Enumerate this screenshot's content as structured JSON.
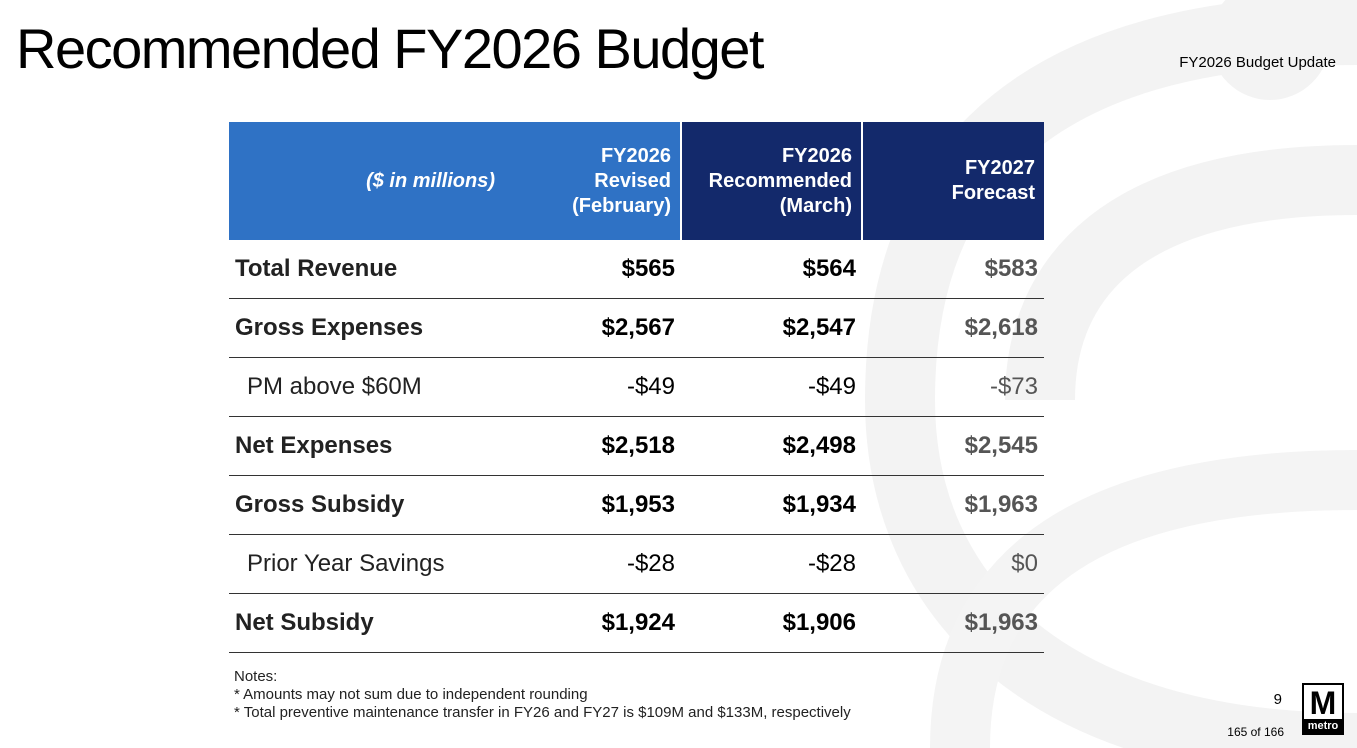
{
  "header": {
    "title": "Recommended FY2026 Budget",
    "subtitle": "FY2026 Budget Update"
  },
  "table": {
    "units_label": "($ in millions)",
    "columns": [
      {
        "lines": [
          "FY2026",
          "Revised",
          "(February)"
        ]
      },
      {
        "lines": [
          "FY2026",
          "Recommended",
          "(March)"
        ]
      },
      {
        "lines": [
          "FY2027",
          "Forecast"
        ]
      }
    ],
    "rows": [
      {
        "label": "Total Revenue",
        "revised": "$565",
        "recommended": "$564",
        "forecast": "$583"
      },
      {
        "label": "Gross Expenses",
        "revised": "$2,567",
        "recommended": "$2,547",
        "forecast": "$2,618"
      },
      {
        "label": "PM above $60M",
        "revised": "-$49",
        "recommended": "-$49",
        "forecast": "-$73"
      },
      {
        "label": "Net Expenses",
        "revised": "$2,518",
        "recommended": "$2,498",
        "forecast": "$2,545"
      },
      {
        "label": "Gross Subsidy",
        "revised": "$1,953",
        "recommended": "$1,934",
        "forecast": "$1,963"
      },
      {
        "label": "Prior Year Savings",
        "revised": "-$28",
        "recommended": "-$28",
        "forecast": "$0"
      },
      {
        "label": "Net Subsidy",
        "revised": "$1,924",
        "recommended": "$1,906",
        "forecast": "$1,963"
      }
    ]
  },
  "notes": {
    "heading": "Notes:",
    "items": [
      "* Amounts may not sum due to independent rounding",
      "* Total preventive maintenance transfer in FY26 and FY27 is $109M and $133M, respectively"
    ]
  },
  "footer": {
    "page_number": "9",
    "page_count": "165 of 166",
    "logo_letter": "M",
    "logo_word": "metro"
  },
  "colors": {
    "header_light_blue": "#2f72c5",
    "header_dark_blue": "#13296b",
    "decor_gray": "#f3f3f3"
  }
}
